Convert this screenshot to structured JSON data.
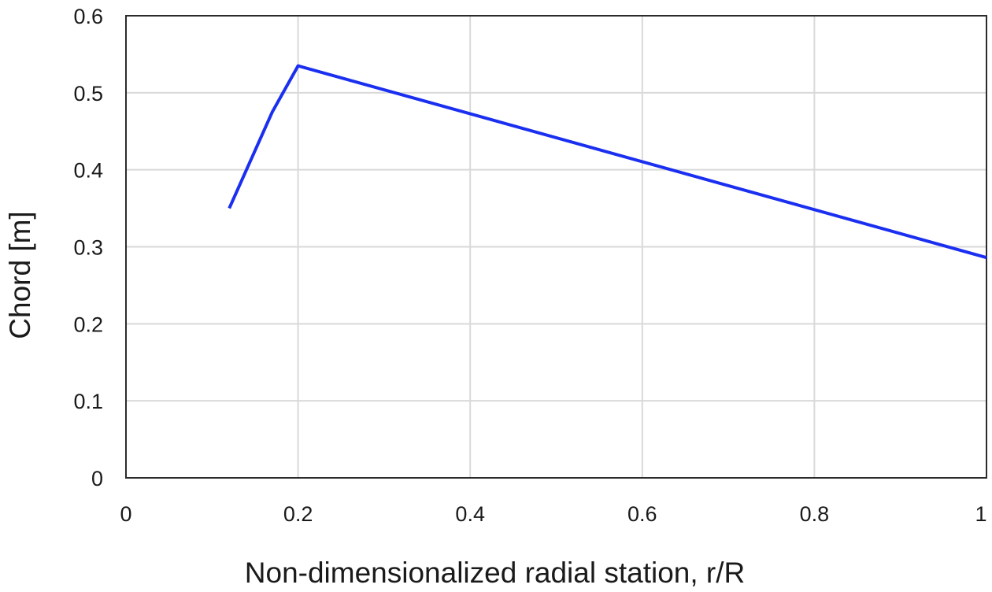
{
  "chart_data": {
    "type": "line",
    "title": "",
    "xlabel": "Non-dimensionalized radial station, r/R",
    "ylabel": "Chord [m]",
    "xlim": [
      0,
      1
    ],
    "ylim": [
      0,
      0.6
    ],
    "x_ticks": [
      0,
      0.2,
      0.4,
      0.6,
      0.8,
      1
    ],
    "x_tick_labels": [
      "0",
      "0.2",
      "0.4",
      "0.6",
      "0.8",
      "1"
    ],
    "y_ticks": [
      0,
      0.1,
      0.2,
      0.3,
      0.4,
      0.5,
      0.6
    ],
    "y_tick_labels": [
      "0",
      "0.1",
      "0.2",
      "0.3",
      "0.4",
      "0.5",
      "0.6"
    ],
    "grid": true,
    "legend": "none",
    "series": [
      {
        "color": "#1a2ff0",
        "x": [
          0.12,
          0.17,
          0.2,
          1.0
        ],
        "y": [
          0.35,
          0.475,
          0.535,
          0.286
        ]
      }
    ]
  }
}
